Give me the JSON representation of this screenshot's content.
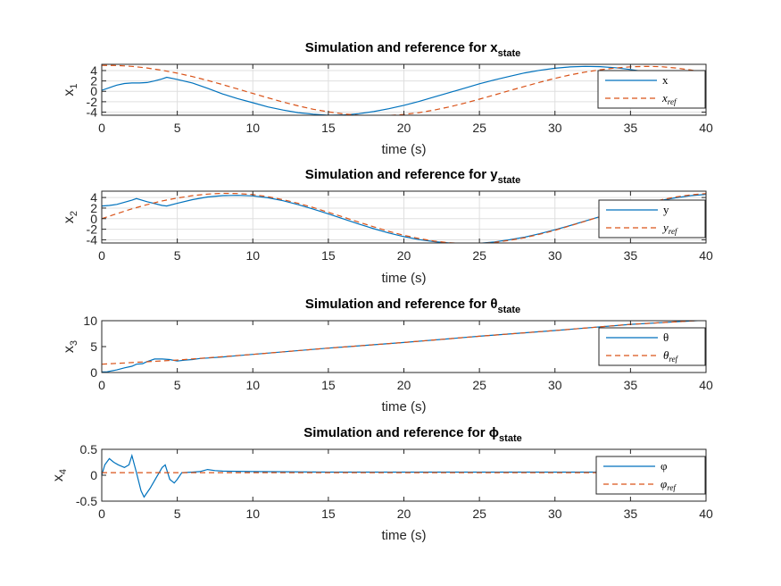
{
  "colors": {
    "sim": "#0072BD",
    "ref": "#D95319",
    "grid": "#dfdfdf",
    "axis": "#262626"
  },
  "chart_data": [
    {
      "type": "line",
      "title": "Simulation and reference for x",
      "title_subscript": "state",
      "xlabel": "time (s)",
      "ylabel": "x",
      "ylabel_subscript": "1",
      "xlim": [
        0,
        40
      ],
      "ylim": [
        -4.6,
        5.2
      ],
      "x_ticks": [
        0,
        5,
        10,
        15,
        20,
        25,
        30,
        35,
        40
      ],
      "y_ticks": [
        -4,
        -2,
        0,
        2,
        4
      ],
      "grid": true,
      "legend_position": "right",
      "series": [
        {
          "name": "x",
          "style": "solid",
          "role": "sim",
          "x": [
            0,
            0.5,
            1,
            1.5,
            2,
            2.5,
            3,
            3.5,
            4,
            4.3,
            5,
            6,
            7,
            8,
            9,
            10,
            11,
            12,
            13,
            14,
            15,
            16,
            17,
            18,
            19,
            20,
            21,
            22,
            23,
            24,
            25,
            26,
            27,
            28,
            29,
            30,
            31,
            32,
            33,
            34,
            35,
            36,
            37,
            38,
            39,
            40
          ],
          "y": [
            0.2,
            0.7,
            1.2,
            1.5,
            1.6,
            1.6,
            1.7,
            2.0,
            2.4,
            2.7,
            2.3,
            1.6,
            0.6,
            -0.5,
            -1.4,
            -2.2,
            -3.0,
            -3.6,
            -4.1,
            -4.4,
            -4.6,
            -4.55,
            -4.3,
            -3.9,
            -3.35,
            -2.7,
            -1.95,
            -1.1,
            -0.25,
            0.6,
            1.45,
            2.2,
            2.9,
            3.55,
            4.05,
            4.45,
            4.7,
            4.8,
            4.75,
            4.55,
            4.2,
            3.75,
            3.2,
            2.5,
            1.7,
            0.9
          ]
        },
        {
          "name": "x_ref",
          "legend_base": "x",
          "legend_sub": "ref",
          "style": "dashed",
          "role": "ref",
          "x": [
            0,
            1,
            2,
            3,
            4,
            5,
            6,
            7,
            8,
            9,
            10,
            11,
            12,
            13,
            14,
            15,
            16,
            17,
            18,
            19,
            20,
            21,
            22,
            23,
            24,
            25,
            26,
            27,
            28,
            29,
            30,
            31,
            32,
            33,
            34,
            35,
            36,
            37,
            38,
            39,
            40
          ],
          "y": [
            5.0,
            4.98,
            4.8,
            4.5,
            4.05,
            3.5,
            2.85,
            2.1,
            1.3,
            0.45,
            -0.4,
            -1.25,
            -2.05,
            -2.8,
            -3.45,
            -3.95,
            -4.35,
            -4.6,
            -4.7,
            -4.65,
            -4.45,
            -4.1,
            -3.6,
            -3.0,
            -2.3,
            -1.5,
            -0.7,
            0.15,
            0.95,
            1.75,
            2.5,
            3.15,
            3.7,
            4.15,
            4.5,
            4.72,
            4.8,
            4.75,
            4.5,
            4.1,
            3.6
          ]
        }
      ]
    },
    {
      "type": "line",
      "title": "Simulation and reference for y",
      "title_subscript": "state",
      "xlabel": "time (s)",
      "ylabel": "x",
      "ylabel_subscript": "2",
      "xlim": [
        0,
        40
      ],
      "ylim": [
        -4.6,
        5.2
      ],
      "x_ticks": [
        0,
        5,
        10,
        15,
        20,
        25,
        30,
        35,
        40
      ],
      "y_ticks": [
        -4,
        -2,
        0,
        2,
        4
      ],
      "grid": true,
      "legend_position": "right",
      "series": [
        {
          "name": "y",
          "style": "solid",
          "role": "sim",
          "x": [
            0,
            0.5,
            1,
            1.5,
            2,
            2.3,
            3,
            4,
            4.3,
            5,
            6,
            7,
            8,
            9,
            10,
            11,
            12,
            13,
            14,
            15,
            16,
            17,
            18,
            19,
            20,
            21,
            22,
            23,
            24,
            25,
            26,
            27,
            28,
            29,
            30,
            31,
            32,
            33,
            34,
            35,
            36,
            37,
            38,
            39,
            40
          ],
          "y": [
            2.4,
            2.5,
            2.7,
            3.1,
            3.5,
            3.8,
            3.2,
            2.5,
            2.4,
            2.9,
            3.6,
            4.1,
            4.35,
            4.4,
            4.3,
            3.95,
            3.4,
            2.65,
            1.8,
            0.9,
            -0.05,
            -1.0,
            -1.9,
            -2.7,
            -3.4,
            -3.95,
            -4.35,
            -4.6,
            -4.7,
            -4.65,
            -4.4,
            -4.0,
            -3.5,
            -2.85,
            -2.1,
            -1.3,
            -0.45,
            0.4,
            1.25,
            2.05,
            2.8,
            3.45,
            3.95,
            4.35,
            4.6
          ]
        },
        {
          "name": "y_ref",
          "legend_base": "y",
          "legend_sub": "ref",
          "style": "dashed",
          "role": "ref",
          "x": [
            0,
            1,
            2,
            3,
            4,
            5,
            6,
            7,
            8,
            9,
            10,
            11,
            12,
            13,
            14,
            15,
            16,
            17,
            18,
            19,
            20,
            21,
            22,
            23,
            24,
            25,
            26,
            27,
            28,
            29,
            30,
            31,
            32,
            33,
            34,
            35,
            36,
            37,
            38,
            39,
            40
          ],
          "y": [
            0.0,
            0.95,
            1.85,
            2.65,
            3.35,
            3.9,
            4.35,
            4.65,
            4.8,
            4.75,
            4.55,
            4.15,
            3.6,
            2.9,
            2.1,
            1.2,
            0.3,
            -0.65,
            -1.55,
            -2.4,
            -3.15,
            -3.75,
            -4.25,
            -4.55,
            -4.7,
            -4.7,
            -4.5,
            -4.1,
            -3.6,
            -2.95,
            -2.2,
            -1.35,
            -0.5,
            0.4,
            1.3,
            2.15,
            2.9,
            3.55,
            4.1,
            4.5,
            4.75
          ]
        }
      ]
    },
    {
      "type": "line",
      "title": "Simulation and reference for θ",
      "title_subscript": "state",
      "xlabel": "time (s)",
      "ylabel": "x",
      "ylabel_subscript": "3",
      "xlim": [
        0,
        40
      ],
      "ylim": [
        0,
        10
      ],
      "x_ticks": [
        0,
        5,
        10,
        15,
        20,
        25,
        30,
        35,
        40
      ],
      "y_ticks": [
        0,
        5,
        10
      ],
      "grid": false,
      "legend_position": "right",
      "series": [
        {
          "name": "θ",
          "style": "solid",
          "role": "sim",
          "x": [
            0,
            0.3,
            0.6,
            1,
            1.5,
            2,
            2.3,
            2.7,
            3,
            3.5,
            4,
            4.5,
            5,
            5.5,
            6,
            6.5,
            7,
            8,
            10,
            15,
            20,
            25,
            30,
            35,
            40
          ],
          "y": [
            0.1,
            0.1,
            0.3,
            0.5,
            0.9,
            1.2,
            1.6,
            1.7,
            2.1,
            2.6,
            2.6,
            2.5,
            2.2,
            2.4,
            2.5,
            2.7,
            2.8,
            3.0,
            3.5,
            4.7,
            5.8,
            7.0,
            8.1,
            9.3,
            10.1
          ]
        },
        {
          "name": "θ_ref",
          "legend_base": "θ",
          "legend_sub": "ref",
          "style": "dashed",
          "role": "ref",
          "x": [
            0,
            5,
            10,
            15,
            20,
            25,
            30,
            35,
            40
          ],
          "y": [
            1.6,
            2.4,
            3.5,
            4.7,
            5.8,
            7.0,
            8.1,
            9.3,
            10.1
          ]
        }
      ]
    },
    {
      "type": "line",
      "title": "Simulation and reference for ϕ",
      "title_subscript": "state",
      "xlabel": "time (s)",
      "ylabel": "x",
      "ylabel_subscript": "4",
      "xlim": [
        0,
        40
      ],
      "ylim": [
        -0.5,
        0.5
      ],
      "x_ticks": [
        0,
        5,
        10,
        15,
        20,
        25,
        30,
        35,
        40
      ],
      "y_ticks": [
        -0.5,
        0,
        0.5
      ],
      "grid": false,
      "legend_position": "right",
      "series": [
        {
          "name": "φ",
          "style": "solid",
          "role": "sim",
          "x": [
            0,
            0.2,
            0.5,
            0.8,
            1.1,
            1.5,
            1.8,
            2.0,
            2.3,
            2.6,
            2.8,
            3.2,
            3.6,
            4.0,
            4.2,
            4.5,
            4.8,
            5.0,
            5.3,
            6,
            6.5,
            7,
            7.5,
            8,
            10,
            15,
            20,
            25,
            30,
            35,
            40
          ],
          "y": [
            0.0,
            0.2,
            0.32,
            0.25,
            0.2,
            0.15,
            0.2,
            0.38,
            0.05,
            -0.3,
            -0.42,
            -0.25,
            -0.05,
            0.15,
            0.2,
            -0.08,
            -0.15,
            -0.08,
            0.05,
            0.06,
            0.07,
            0.11,
            0.09,
            0.08,
            0.07,
            0.06,
            0.06,
            0.06,
            0.06,
            0.06,
            0.06
          ]
        },
        {
          "name": "φ_ref",
          "legend_base": "φ",
          "legend_sub": "ref",
          "style": "dashed",
          "role": "ref",
          "x": [
            0,
            40
          ],
          "y": [
            0.05,
            0.05
          ]
        }
      ]
    }
  ]
}
